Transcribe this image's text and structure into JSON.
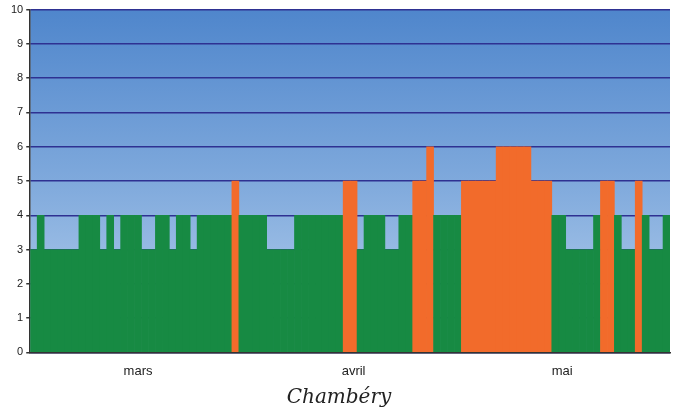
{
  "chart_data": {
    "type": "bar",
    "title": "Chambéry",
    "categories": [
      null,
      null,
      null,
      null,
      null,
      null,
      null,
      null,
      null,
      null,
      null,
      null,
      null,
      null,
      null,
      "mars",
      null,
      null,
      null,
      null,
      null,
      null,
      null,
      null,
      null,
      null,
      null,
      null,
      null,
      null,
      null,
      null,
      null,
      null,
      null,
      null,
      null,
      null,
      null,
      null,
      null,
      null,
      null,
      null,
      null,
      null,
      "avril",
      null,
      null,
      null,
      null,
      null,
      null,
      null,
      null,
      null,
      null,
      null,
      null,
      null,
      null,
      null,
      null,
      null,
      null,
      null,
      null,
      null,
      null,
      null,
      null,
      null,
      null,
      null,
      null,
      null,
      "mai",
      null,
      null,
      null,
      null,
      null,
      null,
      null,
      null,
      null,
      null,
      null,
      null,
      null,
      null,
      null
    ],
    "values": [
      3,
      4,
      3,
      3,
      3,
      3,
      3,
      4,
      4,
      4,
      3,
      4,
      3,
      4,
      4,
      4,
      3,
      3,
      4,
      4,
      3,
      4,
      4,
      3,
      4,
      4,
      4,
      4,
      4,
      5,
      4,
      4,
      4,
      4,
      3,
      3,
      3,
      3,
      4,
      4,
      4,
      4,
      4,
      4,
      4,
      5,
      5,
      3,
      4,
      4,
      4,
      3,
      3,
      4,
      4,
      5,
      5,
      6,
      4,
      4,
      4,
      4,
      5,
      5,
      5,
      5,
      5,
      6,
      6,
      6,
      6,
      6,
      5,
      5,
      5,
      4,
      4,
      3,
      3,
      3,
      3,
      4,
      5,
      5,
      4,
      3,
      3,
      5,
      4,
      3,
      3,
      4
    ],
    "colors": [
      "#178a43",
      "#178a43",
      "#178a43",
      "#178a43",
      "#178a43",
      "#178a43",
      "#178a43",
      "#178a43",
      "#178a43",
      "#178a43",
      "#178a43",
      "#178a43",
      "#178a43",
      "#178a43",
      "#178a43",
      "#178a43",
      "#178a43",
      "#178a43",
      "#178a43",
      "#178a43",
      "#178a43",
      "#178a43",
      "#178a43",
      "#178a43",
      "#178a43",
      "#178a43",
      "#178a43",
      "#178a43",
      "#178a43",
      "#f26b2b",
      "#178a43",
      "#178a43",
      "#178a43",
      "#178a43",
      "#178a43",
      "#178a43",
      "#178a43",
      "#178a43",
      "#178a43",
      "#178a43",
      "#178a43",
      "#178a43",
      "#178a43",
      "#178a43",
      "#178a43",
      "#f26b2b",
      "#f26b2b",
      "#178a43",
      "#178a43",
      "#178a43",
      "#178a43",
      "#178a43",
      "#178a43",
      "#178a43",
      "#178a43",
      "#f26b2b",
      "#f26b2b",
      "#f26b2b",
      "#178a43",
      "#178a43",
      "#178a43",
      "#178a43",
      "#f26b2b",
      "#f26b2b",
      "#f26b2b",
      "#f26b2b",
      "#f26b2b",
      "#f26b2b",
      "#f26b2b",
      "#f26b2b",
      "#f26b2b",
      "#f26b2b",
      "#f26b2b",
      "#f26b2b",
      "#f26b2b",
      "#178a43",
      "#178a43",
      "#178a43",
      "#178a43",
      "#178a43",
      "#178a43",
      "#178a43",
      "#f26b2b",
      "#f26b2b",
      "#178a43",
      "#178a43",
      "#178a43",
      "#f26b2b",
      "#178a43",
      "#178a43",
      "#178a43",
      "#178a43"
    ],
    "ylim": [
      0,
      10
    ],
    "yticks": [
      0,
      1,
      2,
      3,
      4,
      5,
      6,
      7,
      8,
      9,
      10
    ],
    "grid": true
  }
}
